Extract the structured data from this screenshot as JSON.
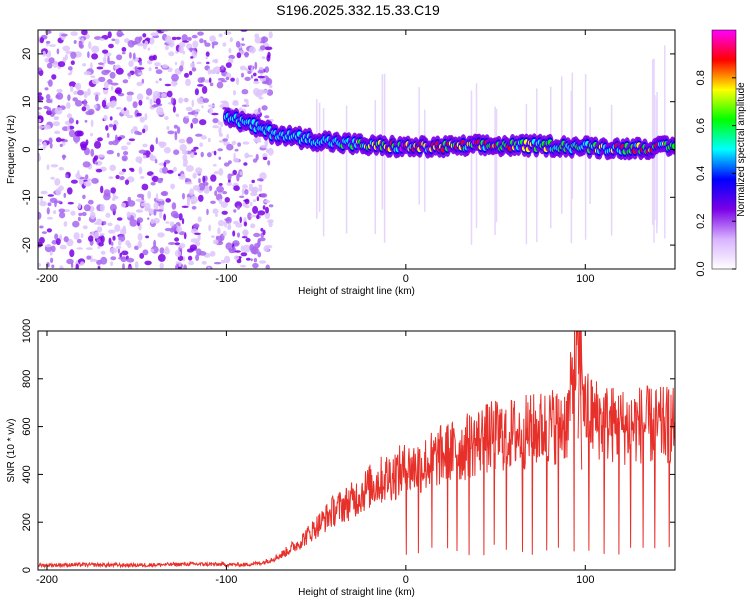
{
  "title": "S196.2025.332.15.33.C19",
  "colors": {
    "snr_line": "#e8302a",
    "frame": "#000000"
  },
  "chart_data": [
    {
      "type": "heatmap",
      "name": "spectrogram",
      "xlabel": "Height of straight line (km)",
      "ylabel": "Frequency (Hz)",
      "xlim": [
        -205,
        150
      ],
      "ylim": [
        -25,
        25
      ],
      "xticks": [
        -200,
        -100,
        0,
        100
      ],
      "yticks": [
        -20,
        -10,
        0,
        10,
        20
      ],
      "colorbar": {
        "label": "Normalized spectral amplitude",
        "range": [
          0,
          1
        ],
        "ticks": [
          "0.0",
          "0.2",
          "0.4",
          "0.6",
          "0.8"
        ],
        "colors": [
          "#ffffff",
          "#d9b3ff",
          "#7a00e6",
          "#0000ff",
          "#00ffff",
          "#00ff00",
          "#ffff00",
          "#ff0000",
          "#ff00ff"
        ]
      },
      "noise_region_x": [
        -205,
        -75
      ],
      "signal_track": {
        "x": [
          -100,
          -85,
          -75,
          -60,
          -40,
          -20,
          0,
          20,
          40,
          60,
          80,
          100,
          120,
          150
        ],
        "freq": [
          7,
          5,
          3.5,
          2.5,
          1.5,
          0.8,
          0.5,
          0.5,
          0.8,
          0.8,
          0.8,
          0.5,
          0.2,
          0.5
        ],
        "peak_amplitude": [
          0.3,
          0.4,
          0.5,
          0.5,
          0.55,
          0.75,
          0.95,
          0.95,
          0.9,
          0.85,
          0.75,
          0.6,
          0.85,
          0.9
        ]
      }
    },
    {
      "type": "line",
      "name": "snr",
      "xlabel": "Height of straight line (km)",
      "ylabel": "SNR (10 * v/v)",
      "xlim": [
        -205,
        150
      ],
      "ylim": [
        0,
        1000
      ],
      "xticks": [
        -200,
        -100,
        0,
        100
      ],
      "yticks": [
        0,
        200,
        400,
        600,
        800,
        1000
      ],
      "series": [
        {
          "name": "SNR",
          "x": [
            -205,
            -180,
            -150,
            -120,
            -90,
            -80,
            -70,
            -60,
            -50,
            -40,
            -30,
            -20,
            -10,
            0,
            10,
            20,
            30,
            40,
            50,
            60,
            70,
            80,
            90,
            97,
            100,
            110,
            120,
            130,
            140,
            150
          ],
          "y": [
            20,
            22,
            20,
            25,
            22,
            30,
            60,
            110,
            180,
            250,
            290,
            350,
            390,
            420,
            440,
            480,
            500,
            540,
            560,
            570,
            580,
            600,
            620,
            1000,
            660,
            620,
            600,
            610,
            600,
            610
          ]
        }
      ]
    }
  ]
}
